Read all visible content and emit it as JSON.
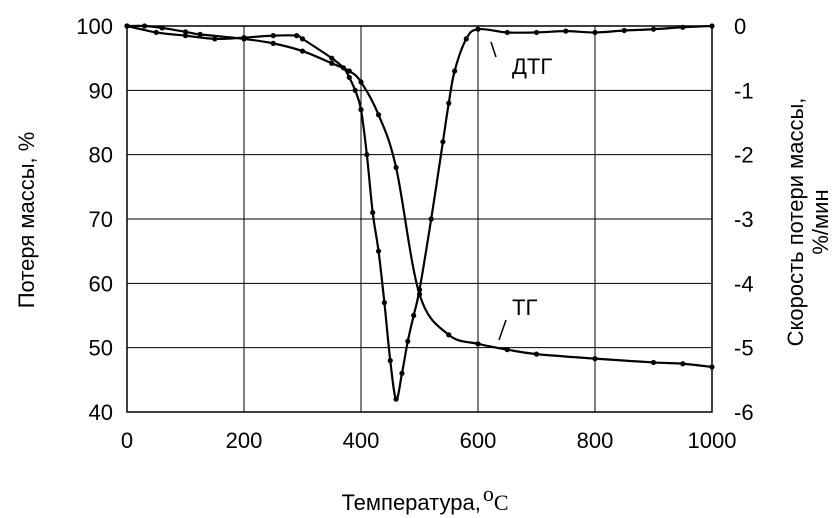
{
  "chart_data": {
    "type": "line",
    "xlabel": "Температура,",
    "xlabel_unit_sup": "o",
    "xlabel_unit": "C",
    "ylabel_left": "Потеря массы, %",
    "ylabel_right_line1": "Скорость потери массы,",
    "ylabel_right_line2": "%/мин",
    "xlim": [
      0,
      1000
    ],
    "ylim_left": [
      40,
      100
    ],
    "ylim_right": [
      -6,
      0
    ],
    "grid": true,
    "x_ticks": [
      "0",
      "200",
      "400",
      "600",
      "800",
      "1000"
    ],
    "y_left_ticks": [
      "40",
      "50",
      "60",
      "70",
      "80",
      "90",
      "100"
    ],
    "y_right_ticks": [
      "-6",
      "-5",
      "-4",
      "-3",
      "-2",
      "-1",
      "0"
    ],
    "series": [
      {
        "name": "ТГ",
        "axis": "left",
        "x": [
          0,
          30,
          60,
          100,
          125,
          200,
          250,
          300,
          350,
          380,
          400,
          430,
          460,
          500,
          550,
          600,
          650,
          700,
          800,
          900,
          950,
          1000
        ],
        "y": [
          100,
          100,
          99.7,
          99.1,
          98.7,
          98.0,
          97.3,
          96.1,
          94.2,
          93.0,
          91.3,
          86.2,
          78.0,
          58.3,
          52.0,
          50.6,
          49.7,
          49.0,
          48.3,
          47.7,
          47.5,
          47.0
        ]
      },
      {
        "name": "ДТГ",
        "axis": "right",
        "x": [
          0,
          50,
          100,
          150,
          200,
          250,
          290,
          300,
          350,
          370,
          380,
          390,
          400,
          410,
          420,
          430,
          440,
          450,
          460,
          470,
          480,
          490,
          500,
          520,
          540,
          550,
          560,
          580,
          600,
          650,
          700,
          750,
          800,
          850,
          900,
          950,
          1000
        ],
        "y": [
          0,
          -0.1,
          -0.15,
          -0.2,
          -0.18,
          -0.15,
          -0.15,
          -0.2,
          -0.5,
          -0.65,
          -0.8,
          -1.0,
          -1.3,
          -2.0,
          -2.9,
          -3.5,
          -4.3,
          -5.2,
          -5.8,
          -5.4,
          -4.9,
          -4.5,
          -4.1,
          -3.0,
          -1.8,
          -1.2,
          -0.7,
          -0.2,
          -0.05,
          -0.1,
          -0.1,
          -0.08,
          -0.1,
          -0.07,
          -0.05,
          -0.02,
          0
        ]
      }
    ],
    "annotations": [
      {
        "text": "ДТГ"
      },
      {
        "text": "ТГ"
      }
    ]
  }
}
